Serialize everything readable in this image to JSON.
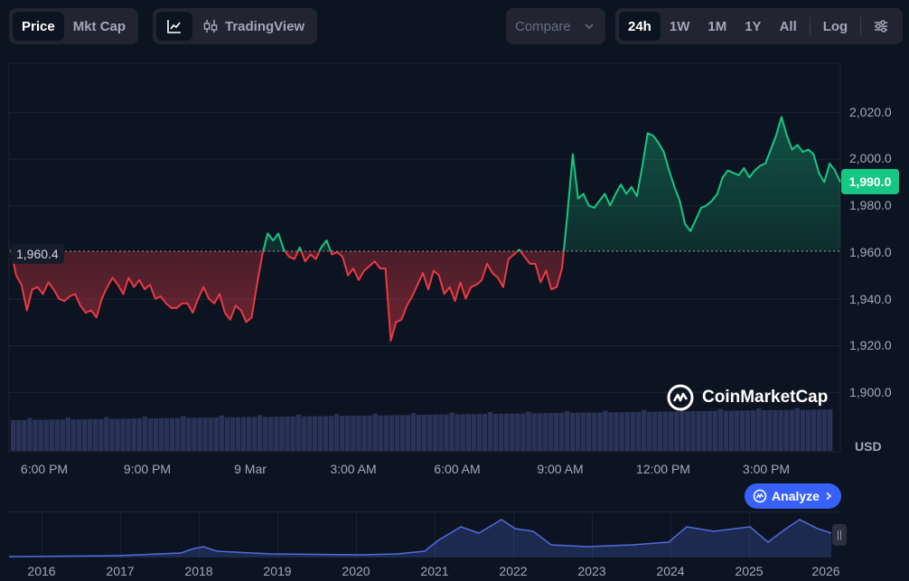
{
  "toolbar": {
    "view_tabs": [
      {
        "label": "Price",
        "active": true
      },
      {
        "label": "Mkt Cap",
        "active": false
      }
    ],
    "chart_style": {
      "line_icon": "line-chart-icon",
      "candle_icon": "candlestick-icon",
      "tradingview_label": "TradingView"
    },
    "compare_label": "Compare",
    "ranges": [
      {
        "label": "24h",
        "active": true
      },
      {
        "label": "1W",
        "active": false
      },
      {
        "label": "1M",
        "active": false
      },
      {
        "label": "1Y",
        "active": false
      },
      {
        "label": "All",
        "active": false
      }
    ],
    "log_label": "Log",
    "settings_icon": "sliders-icon"
  },
  "chart": {
    "y_ticks": [
      "2,020.0",
      "2,000.0",
      "1,980.0",
      "1,960.0",
      "1,940.0",
      "1,920.0",
      "1,900.0"
    ],
    "x_ticks": [
      "6:00 PM",
      "9:00 PM",
      "9 Mar",
      "3:00 AM",
      "6:00 AM",
      "9:00 AM",
      "12:00 PM",
      "3:00 PM"
    ],
    "currency": "USD",
    "current_price": "1,990.0",
    "open_price": "1,960.4",
    "watermark": "CoinMarketCap",
    "analyze_label": "Analyze",
    "colors": {
      "up": "#16c784",
      "down": "#ea3943",
      "volume": "#2a3358",
      "navigator": "#4f6bdb",
      "background": "#0d1421"
    }
  },
  "navigator": {
    "years": [
      "2016",
      "2017",
      "2018",
      "2019",
      "2020",
      "2021",
      "2022",
      "2023",
      "2024",
      "2025",
      "2026"
    ]
  },
  "chart_data": {
    "type": "line",
    "baseline": 1960.4,
    "ylim": [
      1900,
      2030
    ],
    "xlabel": "",
    "ylabel": "",
    "series": [
      {
        "values": [
          1961,
          1950,
          1946,
          1935,
          1944,
          1945,
          1942,
          1947,
          1944,
          1940,
          1939,
          1941,
          1942,
          1937,
          1934,
          1935,
          1932,
          1940,
          1945,
          1949,
          1946,
          1942,
          1949,
          1945,
          1948,
          1944,
          1946,
          1940,
          1941,
          1938,
          1936,
          1936,
          1938,
          1938,
          1934,
          1940,
          1945,
          1940,
          1938,
          1942,
          1934,
          1931,
          1937,
          1935,
          1930,
          1932,
          1946,
          1959,
          1968,
          1965,
          1968,
          1961,
          1958,
          1957,
          1962,
          1956,
          1959,
          1957,
          1962,
          1965,
          1959,
          1960,
          1958,
          1950,
          1953,
          1948,
          1952,
          1954,
          1956,
          1953,
          1953,
          1922,
          1930,
          1931,
          1937,
          1941,
          1946,
          1951,
          1944,
          1952,
          1950,
          1942,
          1945,
          1939,
          1947,
          1940,
          1945,
          1946,
          1948,
          1955,
          1951,
          1949,
          1945,
          1957,
          1959,
          1961,
          1958,
          1955,
          1955,
          1947,
          1952,
          1944,
          1945,
          1953,
          1976,
          2002,
          1983,
          1985,
          1980,
          1979,
          1982,
          1985,
          1980,
          1985,
          1989,
          1985,
          1988,
          1984,
          1997,
          2011,
          2010,
          2007,
          2003,
          1995,
          1988,
          1982,
          1972,
          1969,
          1974,
          1979,
          1980,
          1982,
          1985,
          1992,
          1995,
          1994,
          1993,
          1996,
          1992,
          1995,
          1997,
          1998,
          2004,
          2010,
          2018,
          2010,
          2004,
          2006,
          2003,
          2004,
          2002,
          1994,
          1990,
          1998,
          1995,
          1990
        ]
      }
    ]
  }
}
